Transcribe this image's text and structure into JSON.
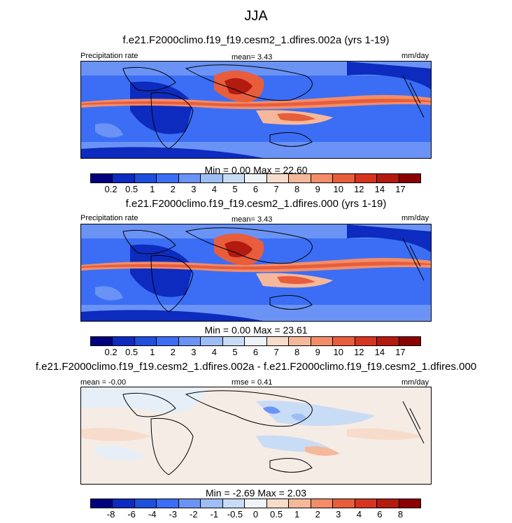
{
  "title": "JJA",
  "colors": {
    "abs_scale": [
      "#00007f",
      "#0d2bbf",
      "#1e4fdd",
      "#3b6ef5",
      "#6b93f5",
      "#9dbdf5",
      "#c9dcf5",
      "#eef3f8",
      "#f8dccb",
      "#f6b89a",
      "#f28d68",
      "#e85d3c",
      "#d53520",
      "#b31a10",
      "#8a0000"
    ],
    "diff_scale": [
      "#00007f",
      "#0d2bbf",
      "#1e4fdd",
      "#3b6ef5",
      "#6b93f5",
      "#9dbdf5",
      "#c9dcf5",
      "#eef3f8",
      "#f8dccb",
      "#f6b89a",
      "#f28d68",
      "#e85d3c",
      "#d53520",
      "#b31a10",
      "#8a0000"
    ]
  },
  "panels": [
    {
      "subtitle": "f.e21.F2000climo.f19_f19.cesm2_1.dfires.002a (yrs 1-19)",
      "left_label": "Precipitation rate",
      "center_label": "mean=   3.43",
      "right_label": "mm/day",
      "minmax": "Min =   0.00 Max =  22.60",
      "scale": "abs"
    },
    {
      "subtitle": "f.e21.F2000climo.f19_f19.cesm2_1.dfires.000 (yrs 1-19)",
      "left_label": "Precipitation rate",
      "center_label": "mean=   3.43",
      "right_label": "mm/day",
      "minmax": "Min =   0.00 Max =  23.61",
      "scale": "abs"
    },
    {
      "subtitle": "f.e21.F2000climo.f19_f19.cesm2_1.dfires.002a - f.e21.F2000climo.f19_f19.cesm2_1.dfires.000",
      "left_label": "mean = -0.00",
      "center_label": "rmse =  0.41",
      "right_label": "mm/day",
      "minmax": "Min =  -2.69 Max =   2.03",
      "scale": "diff"
    }
  ],
  "chart_data": [
    {
      "type": "heatmap",
      "title": "f.e21.F2000climo.f19_f19.cesm2_1.dfires.002a (yrs 1-19)",
      "variable": "Precipitation rate",
      "units": "mm/day",
      "mean": 3.43,
      "min": 0.0,
      "max": 22.6,
      "colorbar_levels": [
        "0.2",
        "0.5",
        "1",
        "2",
        "3",
        "4",
        "5",
        "6",
        "7",
        "8",
        "9",
        "10",
        "12",
        "14",
        "17"
      ]
    },
    {
      "type": "heatmap",
      "title": "f.e21.F2000climo.f19_f19.cesm2_1.dfires.000 (yrs 1-19)",
      "variable": "Precipitation rate",
      "units": "mm/day",
      "mean": 3.43,
      "min": 0.0,
      "max": 23.61,
      "colorbar_levels": [
        "0.2",
        "0.5",
        "1",
        "2",
        "3",
        "4",
        "5",
        "6",
        "7",
        "8",
        "9",
        "10",
        "12",
        "14",
        "17"
      ]
    },
    {
      "type": "heatmap",
      "title": "f.e21.F2000climo.f19_f19.cesm2_1.dfires.002a - f.e21.F2000climo.f19_f19.cesm2_1.dfires.000",
      "units": "mm/day",
      "mean": -0.0,
      "rmse": 0.41,
      "min": -2.69,
      "max": 2.03,
      "colorbar_levels": [
        "-8",
        "-6",
        "-4",
        "-3",
        "-2",
        "-1",
        "-0.5",
        "0",
        "0.5",
        "1",
        "2",
        "3",
        "4",
        "6",
        "8"
      ]
    }
  ]
}
